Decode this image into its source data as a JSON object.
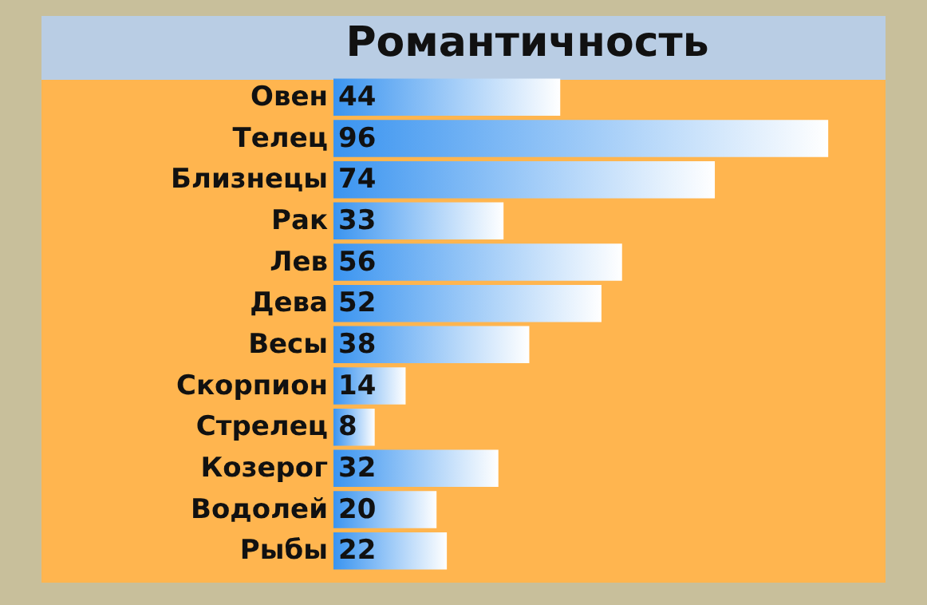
{
  "chart_data": {
    "type": "bar",
    "orientation": "horizontal",
    "title": "Романтичность",
    "categories": [
      "Овен",
      "Телец",
      "Близнецы",
      "Рак",
      "Лев",
      "Дева",
      "Весы",
      "Скорпион",
      "Стрелец",
      "Козерог",
      "Водолей",
      "Рыбы"
    ],
    "values": [
      44,
      96,
      74,
      33,
      56,
      52,
      38,
      14,
      8,
      32,
      20,
      22
    ],
    "color": "#3a94f0",
    "data_labels": true
  }
}
